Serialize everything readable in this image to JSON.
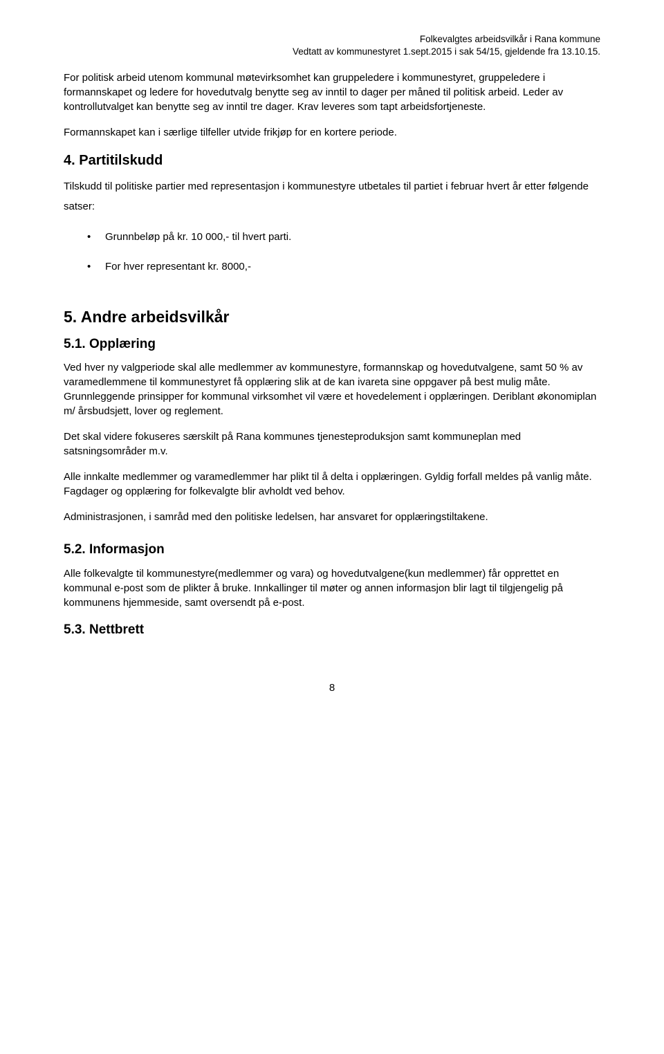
{
  "header": {
    "line1": "Folkevalgtes arbeidsvilkår i Rana kommune",
    "line2": "Vedtatt av kommunestyret 1.sept.2015 i sak 54/15, gjeldende fra 13.10.15."
  },
  "body": {
    "p1": "For politisk arbeid utenom kommunal møtevirksomhet kan gruppeledere i kommunestyret, gruppeledere i formannskapet og ledere for hovedutvalg benytte seg av inntil to dager per måned til politisk arbeid. Leder av kontrollutvalget kan benytte seg av inntil tre dager. Krav leveres som tapt arbeidsfortjeneste.",
    "p2": "Formannskapet kan i særlige tilfeller utvide frikjøp for en kortere periode."
  },
  "s4": {
    "title": "4. Partitilskudd",
    "intro": "Tilskudd til politiske partier med representasjon i kommunestyre utbetales til partiet i februar hvert år etter følgende satser:",
    "bullet1": "Grunnbeløp på kr. 10 000,- til hvert parti.",
    "bullet2": "For hver representant kr. 8000,-"
  },
  "s5": {
    "title": "5. Andre arbeidsvilkår",
    "s51": {
      "title": "5.1.  Opplæring",
      "p1": "Ved hver ny valgperiode skal alle medlemmer av kommunestyre, formannskap og hovedutvalgene, samt 50 % av varamedlemmene til kommunestyret få opplæring slik at de kan ivareta sine oppgaver på best mulig måte. Grunnleggende prinsipper for kommunal virksomhet vil være et hovedelement i opplæringen. Deriblant økonomiplan m/ årsbudsjett, lover og reglement.",
      "p2": "Det skal videre fokuseres særskilt på Rana kommunes tjenesteproduksjon samt kommuneplan med satsningsområder m.v.",
      "p3": "Alle innkalte medlemmer og varamedlemmer har plikt til å delta i opplæringen. Gyldig forfall meldes på vanlig måte. Fagdager og opplæring for folkevalgte blir avholdt ved behov.",
      "p4": "Administrasjonen, i samråd med den politiske ledelsen, har ansvaret for opplæringstiltakene."
    },
    "s52": {
      "title": "5.2.  Informasjon",
      "p1": "Alle folkevalgte til kommunestyre(medlemmer og vara) og hovedutvalgene(kun medlemmer) får opprettet en kommunal e-post som de plikter å bruke. Innkallinger til møter og annen informasjon blir lagt til tilgjengelig på kommunens hjemmeside, samt oversendt på e-post."
    },
    "s53": {
      "title": "5.3.  Nettbrett"
    }
  },
  "pagenum": "8"
}
